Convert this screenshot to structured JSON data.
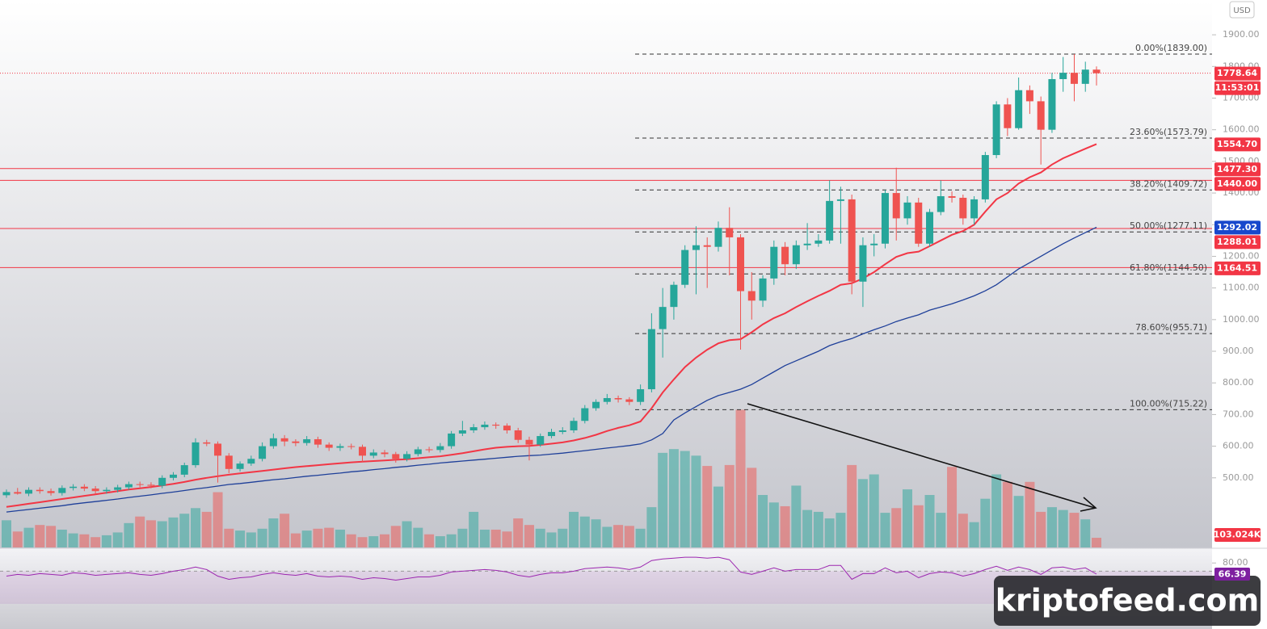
{
  "chart_data": {
    "type": "candlestick",
    "currency": "USD",
    "up_color": "#26a69a",
    "down_color": "#ef5350",
    "ylim": [
      280,
      2010
    ],
    "yticks": [
      {
        "value": 1900,
        "label": "1900.00"
      },
      {
        "value": 1800,
        "label": "1800.00"
      },
      {
        "value": 1700,
        "label": "1700.00"
      },
      {
        "value": 1600,
        "label": "1600.00"
      },
      {
        "value": 1500,
        "label": "1500.00"
      },
      {
        "value": 1400,
        "label": "1400.00"
      },
      {
        "value": 1300,
        "label": "1300.00"
      },
      {
        "value": 1200,
        "label": "1200.00"
      },
      {
        "value": 1100,
        "label": "1100.00"
      },
      {
        "value": 1000,
        "label": "1000.00"
      },
      {
        "value": 900,
        "label": "900.00"
      },
      {
        "value": 800,
        "label": "800.00"
      },
      {
        "value": 700,
        "label": "700.00"
      },
      {
        "value": 600,
        "label": "600.00"
      },
      {
        "value": 500,
        "label": "500.00"
      }
    ],
    "grid": false,
    "open": [
      445,
      455,
      450,
      462,
      458,
      452,
      468,
      472,
      466,
      458,
      462,
      470,
      480,
      478,
      475,
      500,
      510,
      540,
      612,
      608,
      570,
      528,
      545,
      560,
      600,
      625,
      615,
      610,
      622,
      605,
      595,
      600,
      598,
      570,
      580,
      575,
      560,
      575,
      590,
      588,
      600,
      640,
      650,
      660,
      668,
      665,
      650,
      620,
      605,
      632,
      645,
      650,
      680,
      720,
      740,
      752,
      748,
      740,
      780,
      970,
      1040,
      1110,
      1220,
      1235,
      1230,
      1290,
      1260,
      1090,
      1060,
      1130,
      1230,
      1175,
      1235,
      1240,
      1250,
      1375,
      1380,
      1120,
      1235,
      1240,
      1400,
      1320,
      1370,
      1240,
      1340,
      1390,
      1385,
      1320,
      1380,
      1520,
      1680,
      1605,
      1725,
      1690,
      1600,
      1760,
      1780,
      1745,
      1790
    ],
    "high": [
      463,
      468,
      470,
      470,
      466,
      476,
      480,
      480,
      474,
      470,
      478,
      488,
      488,
      486,
      508,
      518,
      548,
      625,
      620,
      615,
      578,
      552,
      570,
      612,
      640,
      635,
      622,
      632,
      630,
      612,
      608,
      608,
      605,
      590,
      588,
      582,
      584,
      598,
      598,
      610,
      648,
      680,
      670,
      678,
      675,
      672,
      658,
      630,
      640,
      655,
      660,
      690,
      730,
      748,
      765,
      760,
      755,
      795,
      1020,
      1100,
      1120,
      1235,
      1295,
      1260,
      1310,
      1355,
      1270,
      1150,
      1140,
      1250,
      1245,
      1250,
      1305,
      1270,
      1440,
      1420,
      1395,
      1260,
      1270,
      1410,
      1480,
      1390,
      1385,
      1350,
      1440,
      1405,
      1395,
      1390,
      1530,
      1690,
      1700,
      1765,
      1740,
      1705,
      1780,
      1830,
      1839,
      1815,
      1800
    ],
    "low": [
      437,
      447,
      442,
      450,
      444,
      444,
      460,
      458,
      450,
      450,
      454,
      462,
      470,
      467,
      467,
      492,
      502,
      532,
      600,
      485,
      515,
      520,
      538,
      552,
      592,
      600,
      600,
      602,
      595,
      585,
      585,
      590,
      550,
      562,
      565,
      548,
      552,
      568,
      580,
      580,
      592,
      632,
      642,
      652,
      655,
      640,
      610,
      555,
      598,
      625,
      638,
      642,
      672,
      712,
      732,
      738,
      730,
      730,
      770,
      880,
      1000,
      1100,
      1080,
      1100,
      1215,
      1140,
      905,
      1000,
      1040,
      1110,
      1140,
      1160,
      1220,
      1230,
      1240,
      1240,
      1080,
      1040,
      1200,
      1225,
      1250,
      1300,
      1230,
      1230,
      1330,
      1370,
      1300,
      1300,
      1370,
      1510,
      1580,
      1600,
      1650,
      1490,
      1590,
      1720,
      1690,
      1720,
      1740
    ],
    "close": [
      455,
      450,
      462,
      458,
      452,
      468,
      472,
      466,
      458,
      462,
      470,
      480,
      478,
      475,
      500,
      510,
      540,
      612,
      608,
      570,
      528,
      545,
      560,
      600,
      625,
      615,
      610,
      622,
      605,
      595,
      600,
      598,
      570,
      580,
      575,
      560,
      575,
      590,
      588,
      600,
      640,
      650,
      660,
      668,
      665,
      650,
      620,
      605,
      632,
      645,
      650,
      680,
      720,
      740,
      752,
      748,
      740,
      780,
      970,
      1040,
      1110,
      1220,
      1235,
      1230,
      1290,
      1260,
      1090,
      1060,
      1130,
      1230,
      1175,
      1235,
      1240,
      1250,
      1375,
      1380,
      1120,
      1235,
      1240,
      1400,
      1320,
      1370,
      1240,
      1340,
      1390,
      1385,
      1320,
      1380,
      1520,
      1680,
      1605,
      1725,
      1690,
      1600,
      1760,
      1780,
      1745,
      1790,
      1778.64
    ],
    "close_label": "1778.64",
    "countdown": "11:53:01",
    "ema": [
      {
        "color": "#f23645",
        "last_label": "1554.70",
        "values": [
          408,
          413,
          418,
          423,
          428,
          433,
          438,
          443,
          448,
          453,
          458,
          463,
          467,
          471,
          476,
          481,
          487,
          494,
          500,
          505,
          510,
          514,
          518,
          522,
          526,
          530,
          534,
          537,
          540,
          543,
          546,
          549,
          551,
          553,
          555,
          557,
          559,
          562,
          565,
          568,
          573,
          578,
          584,
          590,
          595,
          598,
          600,
          601,
          604,
          608,
          612,
          618,
          626,
          636,
          648,
          658,
          666,
          678,
          720,
          770,
          811,
          850,
          880,
          905,
          925,
          935,
          938,
          960,
          985,
          1005,
          1020,
          1040,
          1058,
          1075,
          1091,
          1110,
          1115,
          1130,
          1150,
          1175,
          1198,
          1210,
          1215,
          1232,
          1250,
          1268,
          1280,
          1300,
          1341,
          1380,
          1400,
          1430,
          1450,
          1465,
          1490,
          1510,
          1525,
          1540,
          1554.7
        ]
      },
      {
        "color": "#1e3f99",
        "last_label": "1292.02",
        "values": [
          392,
          396,
          400,
          404,
          408,
          412,
          417,
          421,
          425,
          429,
          433,
          438,
          442,
          446,
          451,
          455,
          460,
          465,
          469,
          474,
          479,
          482,
          486,
          490,
          494,
          497,
          501,
          505,
          508,
          512,
          515,
          519,
          522,
          526,
          529,
          533,
          536,
          540,
          543,
          547,
          550,
          553,
          556,
          559,
          562,
          565,
          568,
          570,
          572,
          575,
          578,
          582,
          586,
          590,
          594,
          598,
          602,
          607,
          620,
          640,
          683,
          705,
          725,
          745,
          760,
          770,
          780,
          795,
          815,
          835,
          855,
          870,
          885,
          900,
          918,
          930,
          940,
          955,
          968,
          980,
          994,
          1005,
          1015,
          1030,
          1040,
          1050,
          1062,
          1075,
          1091,
          1110,
          1135,
          1160,
          1180,
          1200,
          1220,
          1240,
          1258,
          1275,
          1292.02
        ]
      }
    ],
    "levels": [
      {
        "value": 1477.3,
        "label": "1477.30",
        "color": "#f23645"
      },
      {
        "value": 1440.0,
        "label": "1440.00",
        "color": "#f23645"
      },
      {
        "value": 1288.01,
        "label": "1288.01",
        "color": "#f23645"
      },
      {
        "value": 1164.51,
        "label": "1164.51",
        "color": "#f23645"
      }
    ],
    "fib": {
      "color": "#333333",
      "levels": [
        {
          "value": 1839.0,
          "label": "0.00%(1839.00)"
        },
        {
          "value": 1573.79,
          "label": "23.60%(1573.79)"
        },
        {
          "value": 1409.72,
          "label": "38.20%(1409.72)"
        },
        {
          "value": 1277.11,
          "label": "50.00%(1277.11)"
        },
        {
          "value": 1144.5,
          "label": "61.80%(1144.50)"
        },
        {
          "value": 955.71,
          "label": "78.60%(955.71)"
        },
        {
          "value": 715.22,
          "label": "100.00%(715.22)"
        }
      ]
    },
    "volume": {
      "ylim": [
        0,
        1500000
      ],
      "last_label": "103.024K",
      "values": [
        290000,
        170000,
        210000,
        240000,
        230000,
        190000,
        150000,
        140000,
        110000,
        130000,
        160000,
        260000,
        330000,
        290000,
        280000,
        320000,
        360000,
        420000,
        380000,
        590000,
        200000,
        180000,
        160000,
        200000,
        310000,
        360000,
        150000,
        180000,
        200000,
        210000,
        190000,
        140000,
        110000,
        120000,
        140000,
        230000,
        280000,
        210000,
        140000,
        120000,
        140000,
        200000,
        380000,
        190000,
        190000,
        170000,
        310000,
        240000,
        200000,
        160000,
        200000,
        380000,
        330000,
        300000,
        220000,
        240000,
        230000,
        200000,
        430000,
        1010000,
        1050000,
        1030000,
        980000,
        870000,
        650000,
        880000,
        1470000,
        850000,
        560000,
        480000,
        440000,
        660000,
        400000,
        380000,
        310000,
        370000,
        880000,
        730000,
        780000,
        370000,
        420000,
        620000,
        450000,
        560000,
        370000,
        860000,
        360000,
        270000,
        520000,
        780000,
        700000,
        550000,
        700000,
        380000,
        430000,
        400000,
        370000,
        300000,
        103024
      ]
    },
    "rsi": {
      "color": "#9c27b0",
      "ylim": [
        26,
        97
      ],
      "band": [
        30,
        70
      ],
      "yticks": [
        {
          "value": 80,
          "label": "80.00"
        }
      ],
      "last_label": "66.39",
      "values": [
        64,
        66,
        65,
        67,
        66,
        65,
        68,
        67,
        65,
        66,
        67,
        68,
        66,
        65,
        67,
        70,
        72,
        75,
        72,
        64,
        60,
        62,
        63,
        66,
        68,
        66,
        65,
        67,
        64,
        63,
        64,
        63,
        60,
        62,
        61,
        59,
        61,
        63,
        63,
        65,
        69,
        70,
        71,
        72,
        71,
        69,
        65,
        63,
        66,
        68,
        68,
        70,
        73,
        74,
        75,
        74,
        72,
        75,
        83,
        85,
        86,
        87,
        87,
        86,
        87,
        84,
        69,
        66,
        70,
        74,
        70,
        72,
        72,
        72,
        77,
        77,
        60,
        67,
        67,
        74,
        68,
        70,
        62,
        67,
        69,
        68,
        64,
        67,
        72,
        76,
        71,
        75,
        72,
        66,
        74,
        75,
        72,
        74,
        66.39
      ]
    },
    "watermark": "kriptofeed.com"
  }
}
